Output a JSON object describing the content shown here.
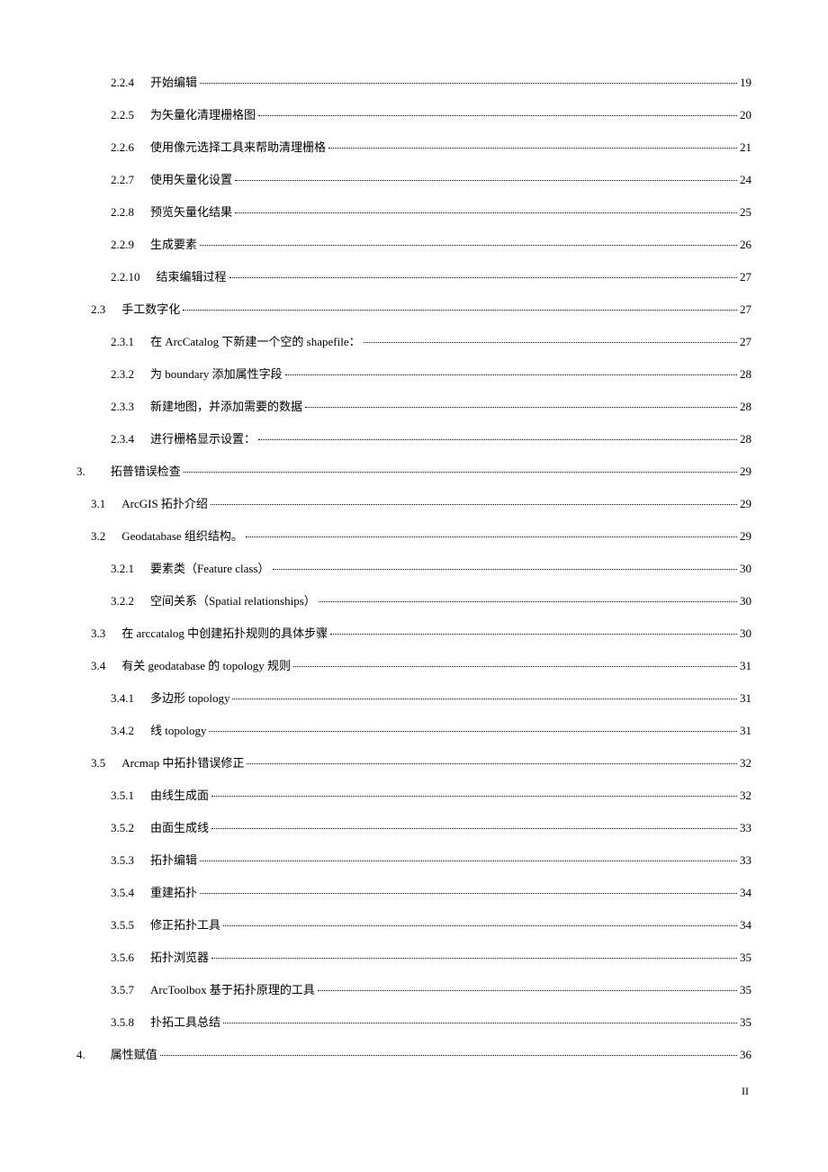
{
  "entries": [
    {
      "level": 3,
      "num": "2.2.4",
      "title": "开始编辑",
      "page": "19"
    },
    {
      "level": 3,
      "num": "2.2.5",
      "title": "为矢量化清理栅格图",
      "page": "20"
    },
    {
      "level": 3,
      "num": "2.2.6",
      "title": "使用像元选择工具来帮助清理栅格",
      "page": "21"
    },
    {
      "level": 3,
      "num": "2.2.7",
      "title": "使用矢量化设置",
      "page": "24"
    },
    {
      "level": 3,
      "num": "2.2.8",
      "title": "预览矢量化结果",
      "page": "25"
    },
    {
      "level": 3,
      "num": "2.2.9",
      "title": "生成要素",
      "page": "26"
    },
    {
      "level": 3,
      "num": "2.2.10",
      "title": "结束编辑过程",
      "page": "27"
    },
    {
      "level": 2,
      "num": "2.3",
      "title": "手工数字化 ",
      "page": "27"
    },
    {
      "level": 3,
      "num": "2.3.1",
      "title": "在 ArcCatalog 下新建一个空的 shapefile： ",
      "page": "27"
    },
    {
      "level": 3,
      "num": "2.3.2",
      "title": "为 boundary 添加属性字段 ",
      "page": "28"
    },
    {
      "level": 3,
      "num": "2.3.3",
      "title": "新建地图，并添加需要的数据",
      "page": "28"
    },
    {
      "level": 3,
      "num": "2.3.4",
      "title": "进行栅格显示设置： ",
      "page": "28"
    },
    {
      "level": 1,
      "num": "3.",
      "title": "拓普错误检查 ",
      "page": "29"
    },
    {
      "level": 2,
      "num": "3.1",
      "title": "ArcGIS 拓扑介绍",
      "page": "29"
    },
    {
      "level": 2,
      "num": "3.2",
      "title": "Geodatabase 组织结构。 ",
      "page": "29"
    },
    {
      "level": 3,
      "num": "3.2.1",
      "title": "要素类（Feature class） ",
      "page": "30"
    },
    {
      "level": 3,
      "num": "3.2.2",
      "title": "空间关系（Spatial relationships） ",
      "page": "30"
    },
    {
      "level": 2,
      "num": "3.3",
      "title": "在 arccatalog 中创建拓扑规则的具体步骤 ",
      "page": "30"
    },
    {
      "level": 2,
      "num": "3.4",
      "title": "有关 geodatabase 的 topology 规则 ",
      "page": "31"
    },
    {
      "level": 3,
      "num": "3.4.1",
      "title": "多边形 topology ",
      "page": "31"
    },
    {
      "level": 3,
      "num": "3.4.2",
      "title": "线 topology ",
      "page": "31"
    },
    {
      "level": 2,
      "num": "3.5",
      "title": "Arcmap 中拓扑错误修正 ",
      "page": "32"
    },
    {
      "level": 3,
      "num": "3.5.1",
      "title": "由线生成面",
      "page": "32"
    },
    {
      "level": 3,
      "num": "3.5.2",
      "title": "由面生成线",
      "page": "33"
    },
    {
      "level": 3,
      "num": "3.5.3",
      "title": "拓扑编辑",
      "page": "33"
    },
    {
      "level": 3,
      "num": "3.5.4",
      "title": "重建拓扑",
      "page": "34"
    },
    {
      "level": 3,
      "num": "3.5.5",
      "title": "修正拓扑工具",
      "page": "34"
    },
    {
      "level": 3,
      "num": "3.5.6",
      "title": "拓扑浏览器",
      "page": "35"
    },
    {
      "level": 3,
      "num": "3.5.7",
      "title": "ArcToolbox 基于拓扑原理的工具",
      "page": "35"
    },
    {
      "level": 3,
      "num": "3.5.8",
      "title": "扑拓工具总结",
      "page": "35"
    },
    {
      "level": 1,
      "num": "4.",
      "title": "属性赋值 ",
      "page": "36"
    }
  ],
  "footer": "II"
}
